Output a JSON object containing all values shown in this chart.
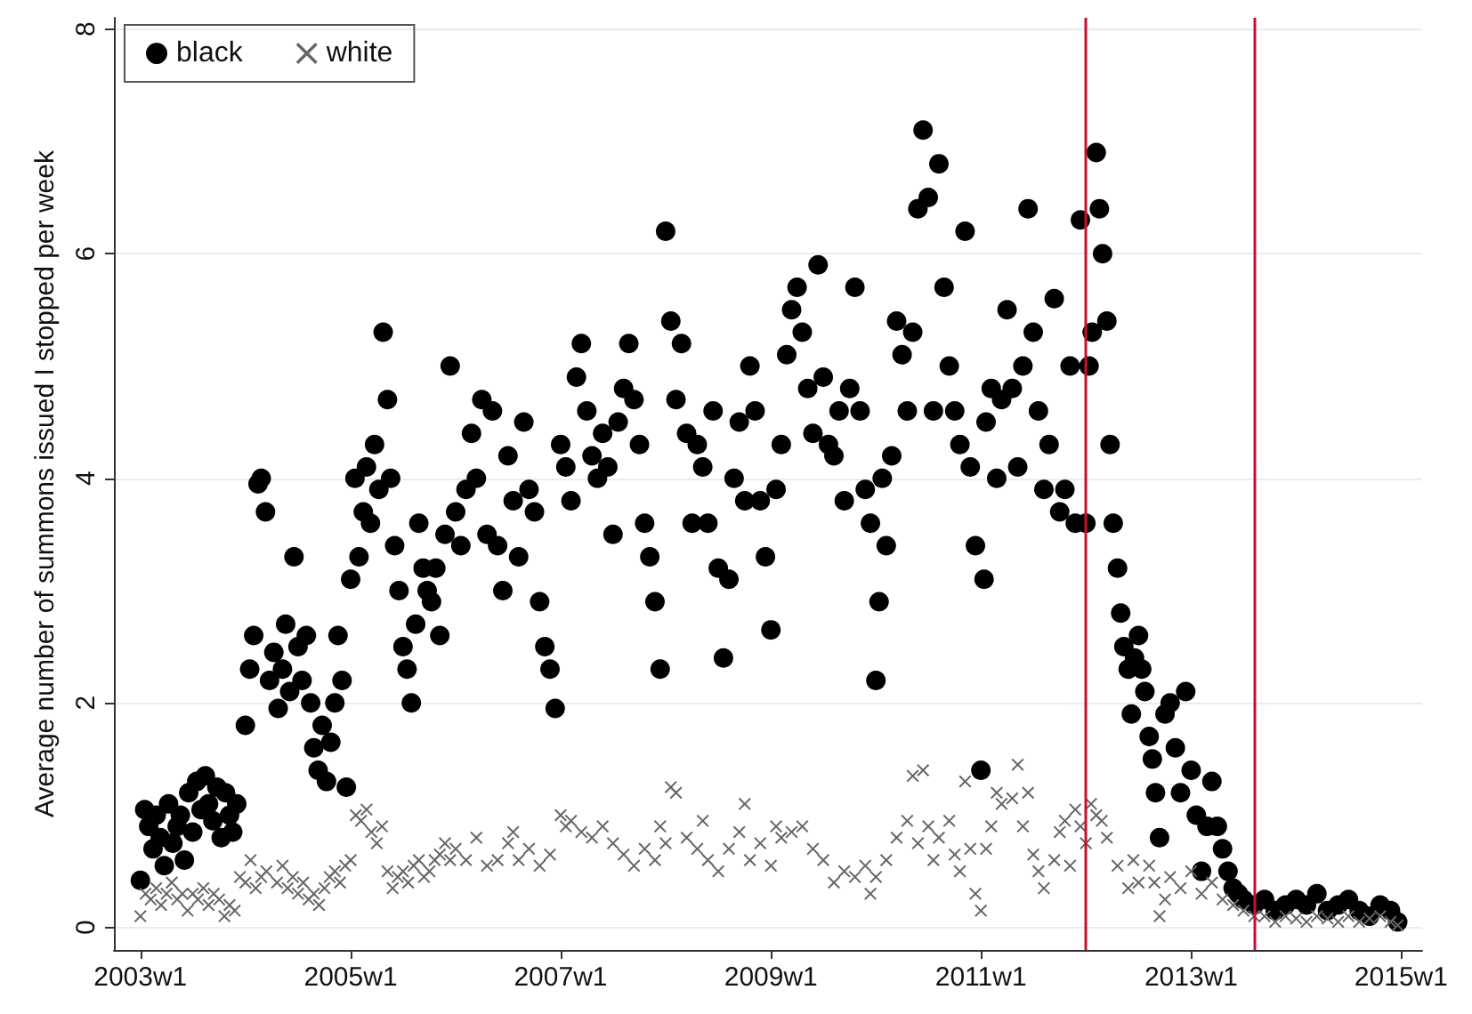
{
  "chart_data": {
    "type": "scatter",
    "ylabel": "Average number of summons issued I stopped per week",
    "xlim": [
      "2002-10-01",
      "2015-03-15"
    ],
    "xticks": [
      {
        "value": "2003-01-01",
        "label": "2003w1"
      },
      {
        "value": "2005-01-01",
        "label": "2005w1"
      },
      {
        "value": "2007-01-01",
        "label": "2007w1"
      },
      {
        "value": "2009-01-01",
        "label": "2009w1"
      },
      {
        "value": "2011-01-01",
        "label": "2011w1"
      },
      {
        "value": "2013-01-01",
        "label": "2013w1"
      },
      {
        "value": "2015-01-01",
        "label": "2015w1"
      }
    ],
    "ylim": [
      -0.2,
      8.1
    ],
    "yticks": [
      0,
      2,
      4,
      6,
      8
    ],
    "grid": "y",
    "legend": "top left",
    "ref_lines": [
      {
        "axis": "x",
        "value": "2012-01-01",
        "label": null,
        "color": "#c8102e"
      },
      {
        "axis": "x",
        "value": "2013-08-08",
        "label": null,
        "color": "#c8102e"
      }
    ],
    "series": [
      {
        "name": "black",
        "color": "#000000",
        "marker": "circle",
        "x": [
          "2003-01-01",
          "2003-01-16",
          "2003-01-30",
          "2003-02-14",
          "2003-02-25",
          "2003-03-11",
          "2003-03-25",
          "2003-04-09",
          "2003-04-24",
          "2003-05-09",
          "2003-05-20",
          "2003-06-03",
          "2003-06-18",
          "2003-07-02",
          "2003-07-16",
          "2003-07-31",
          "2003-08-15",
          "2003-08-26",
          "2003-09-10",
          "2003-09-24",
          "2003-10-09",
          "2003-10-24",
          "2003-11-07",
          "2003-11-18",
          "2003-12-02",
          "2004-01-01",
          "2004-01-16",
          "2004-01-30",
          "2004-02-14",
          "2004-02-25",
          "2004-03-11",
          "2004-03-25",
          "2004-04-09",
          "2004-04-24",
          "2004-05-09",
          "2004-05-20",
          "2004-06-03",
          "2004-06-18",
          "2004-07-02",
          "2004-07-16",
          "2004-07-31",
          "2004-08-15",
          "2004-08-26",
          "2004-09-10",
          "2004-09-24",
          "2004-10-09",
          "2004-10-24",
          "2004-11-07",
          "2004-11-18",
          "2004-12-02",
          "2004-12-17",
          "2005-01-01",
          "2005-01-16",
          "2005-01-30",
          "2005-02-14",
          "2005-02-25",
          "2005-03-11",
          "2005-03-25",
          "2005-04-09",
          "2005-04-24",
          "2005-05-09",
          "2005-05-20",
          "2005-06-03",
          "2005-06-18",
          "2005-07-02",
          "2005-07-16",
          "2005-07-31",
          "2005-08-15",
          "2005-08-26",
          "2005-09-10",
          "2005-09-24",
          "2005-10-09",
          "2005-10-24",
          "2005-11-07",
          "2005-11-25",
          "2005-12-13",
          "2006-01-01",
          "2006-01-19",
          "2006-02-06",
          "2006-02-25",
          "2006-03-14",
          "2006-04-02",
          "2006-04-20",
          "2006-05-09",
          "2006-05-27",
          "2006-06-14",
          "2006-07-02",
          "2006-07-20",
          "2006-08-08",
          "2006-08-26",
          "2006-09-13",
          "2006-10-02",
          "2006-10-20",
          "2006-11-07",
          "2006-11-25",
          "2006-12-13",
          "2007-01-01",
          "2007-01-19",
          "2007-02-06",
          "2007-02-25",
          "2007-03-14",
          "2007-04-02",
          "2007-04-20",
          "2007-05-09",
          "2007-05-27",
          "2007-06-14",
          "2007-07-02",
          "2007-07-20",
          "2007-08-08",
          "2007-08-26",
          "2007-09-13",
          "2007-10-02",
          "2007-10-20",
          "2007-11-07",
          "2007-11-25",
          "2007-12-13",
          "2008-01-01",
          "2008-01-19",
          "2008-02-06",
          "2008-02-25",
          "2008-03-14",
          "2008-04-02",
          "2008-04-20",
          "2008-05-09",
          "2008-05-27",
          "2008-06-14",
          "2008-07-02",
          "2008-07-20",
          "2008-08-08",
          "2008-08-26",
          "2008-09-13",
          "2008-10-02",
          "2008-10-20",
          "2008-11-07",
          "2008-11-25",
          "2008-12-13",
          "2009-01-01",
          "2009-01-19",
          "2009-02-06",
          "2009-02-25",
          "2009-03-14",
          "2009-04-02",
          "2009-04-20",
          "2009-05-09",
          "2009-05-27",
          "2009-06-14",
          "2009-07-02",
          "2009-07-20",
          "2009-08-08",
          "2009-08-26",
          "2009-09-13",
          "2009-10-02",
          "2009-10-20",
          "2009-11-07",
          "2009-11-25",
          "2009-12-13",
          "2010-01-01",
          "2010-01-12",
          "2010-01-23",
          "2010-02-06",
          "2010-02-25",
          "2010-03-14",
          "2010-04-02",
          "2010-04-20",
          "2010-05-09",
          "2010-05-27",
          "2010-06-14",
          "2010-07-02",
          "2010-07-20",
          "2010-08-08",
          "2010-08-26",
          "2010-09-13",
          "2010-10-02",
          "2010-10-20",
          "2010-11-07",
          "2010-11-25",
          "2010-12-13",
          "2011-01-01",
          "2011-01-12",
          "2011-01-19",
          "2011-02-06",
          "2011-02-25",
          "2011-03-14",
          "2011-04-02",
          "2011-04-20",
          "2011-05-09",
          "2011-05-27",
          "2011-06-14",
          "2011-07-02",
          "2011-07-20",
          "2011-08-08",
          "2011-08-26",
          "2011-09-13",
          "2011-10-02",
          "2011-10-20",
          "2011-11-07",
          "2011-11-25",
          "2011-12-13",
          "2012-01-01",
          "2012-01-12",
          "2012-01-23",
          "2012-02-06",
          "2012-02-17",
          "2012-02-28",
          "2012-03-14",
          "2012-03-25",
          "2012-04-05",
          "2012-04-20",
          "2012-05-01",
          "2012-05-12",
          "2012-05-27",
          "2012-06-07",
          "2012-06-18",
          "2012-07-02",
          "2012-07-13",
          "2012-07-24",
          "2012-08-08",
          "2012-08-19",
          "2012-08-30",
          "2012-09-13",
          "2012-10-02",
          "2012-10-20",
          "2012-11-07",
          "2012-11-25",
          "2012-12-13",
          "2013-01-01",
          "2013-01-19",
          "2013-02-06",
          "2013-02-25",
          "2013-03-14",
          "2013-04-02",
          "2013-04-20",
          "2013-05-09",
          "2013-05-27",
          "2013-06-14",
          "2013-07-02",
          "2013-08-08",
          "2013-09-13",
          "2013-10-20",
          "2013-11-25",
          "2014-01-01",
          "2014-02-06",
          "2014-03-14",
          "2014-04-20",
          "2014-05-27",
          "2014-07-02",
          "2014-08-08",
          "2014-09-13",
          "2014-10-20",
          "2014-11-25",
          "2014-12-20"
        ],
        "values": [
          0.42,
          1.05,
          0.9,
          0.7,
          1.0,
          0.8,
          0.55,
          1.1,
          0.75,
          0.9,
          1.0,
          0.6,
          1.2,
          0.85,
          1.3,
          1.05,
          1.35,
          1.1,
          0.95,
          1.25,
          0.8,
          1.2,
          1.0,
          0.85,
          1.1,
          1.8,
          2.3,
          2.6,
          3.95,
          4.0,
          3.7,
          2.2,
          2.45,
          1.95,
          2.3,
          2.7,
          2.1,
          3.3,
          2.5,
          2.2,
          2.6,
          2.0,
          1.6,
          1.4,
          1.8,
          1.3,
          1.65,
          2.0,
          2.6,
          2.2,
          1.25,
          3.1,
          4.0,
          3.3,
          3.7,
          4.1,
          3.6,
          4.3,
          3.9,
          5.3,
          4.7,
          4.0,
          3.4,
          3.0,
          2.5,
          2.3,
          2.0,
          2.7,
          3.6,
          3.2,
          3.0,
          2.9,
          3.2,
          2.6,
          3.5,
          5.0,
          3.7,
          3.4,
          3.9,
          4.4,
          4.0,
          4.7,
          3.5,
          4.6,
          3.4,
          3.0,
          4.2,
          3.8,
          3.3,
          4.5,
          3.9,
          3.7,
          2.9,
          2.5,
          2.3,
          1.95,
          4.3,
          4.1,
          3.8,
          4.9,
          5.2,
          4.6,
          4.2,
          4.0,
          4.4,
          4.1,
          3.5,
          4.5,
          4.8,
          5.2,
          4.7,
          4.3,
          3.6,
          3.3,
          2.9,
          2.3,
          6.2,
          5.4,
          4.7,
          5.2,
          4.4,
          3.6,
          4.3,
          4.1,
          3.6,
          4.6,
          3.2,
          2.4,
          3.1,
          4.0,
          4.5,
          3.8,
          5.0,
          4.6,
          3.8,
          3.3,
          2.65,
          3.9,
          4.3,
          5.1,
          5.5,
          5.7,
          5.3,
          4.8,
          4.4,
          5.9,
          4.9,
          4.3,
          4.2,
          4.6,
          3.8,
          4.8,
          5.7,
          4.6,
          3.9,
          3.6,
          2.2,
          2.9,
          4.0,
          3.4,
          4.2,
          5.4,
          5.1,
          4.6,
          5.3,
          6.4,
          7.1,
          6.5,
          4.6,
          6.8,
          5.7,
          5.0,
          4.6,
          4.3,
          6.2,
          4.1,
          3.4,
          1.4,
          3.1,
          4.5,
          4.8,
          4.0,
          4.7,
          5.5,
          4.8,
          4.1,
          5.0,
          6.4,
          5.3,
          4.6,
          3.9,
          4.3,
          5.6,
          3.7,
          3.9,
          5.0,
          3.6,
          6.3,
          3.6,
          5.0,
          5.3,
          6.9,
          6.4,
          6.0,
          5.4,
          4.3,
          3.6,
          3.2,
          2.8,
          2.5,
          2.3,
          1.9,
          2.4,
          2.6,
          2.3,
          2.1,
          1.7,
          1.5,
          1.2,
          0.8,
          1.9,
          2.0,
          1.6,
          1.2,
          2.1,
          1.4,
          1.0,
          0.5,
          0.9,
          1.3,
          0.9,
          0.7,
          0.5,
          0.35,
          0.3,
          0.25,
          0.2,
          0.25,
          0.15,
          0.2,
          0.25,
          0.2,
          0.3,
          0.15,
          0.2,
          0.25,
          0.15,
          0.1,
          0.2,
          0.15,
          0.05
        ]
      },
      {
        "name": "white",
        "color": "#666666",
        "marker": "cross",
        "x": [
          "2003-01-01",
          "2003-01-19",
          "2003-02-06",
          "2003-02-25",
          "2003-03-14",
          "2003-04-02",
          "2003-04-20",
          "2003-05-09",
          "2003-05-27",
          "2003-06-14",
          "2003-07-02",
          "2003-07-20",
          "2003-08-08",
          "2003-08-26",
          "2003-09-13",
          "2003-10-02",
          "2003-10-20",
          "2003-11-07",
          "2003-11-25",
          "2003-12-13",
          "2004-01-01",
          "2004-01-19",
          "2004-02-06",
          "2004-02-25",
          "2004-03-14",
          "2004-04-20",
          "2004-05-09",
          "2004-05-27",
          "2004-06-14",
          "2004-07-02",
          "2004-07-20",
          "2004-08-08",
          "2004-08-26",
          "2004-09-13",
          "2004-10-02",
          "2004-10-20",
          "2004-11-07",
          "2004-11-25",
          "2004-12-13",
          "2005-01-01",
          "2005-01-19",
          "2005-02-06",
          "2005-02-25",
          "2005-03-14",
          "2005-04-02",
          "2005-04-20",
          "2005-05-09",
          "2005-05-27",
          "2005-06-14",
          "2005-07-02",
          "2005-07-20",
          "2005-08-08",
          "2005-08-26",
          "2005-09-13",
          "2005-10-02",
          "2005-10-20",
          "2005-11-07",
          "2005-11-25",
          "2005-12-13",
          "2006-01-01",
          "2006-02-06",
          "2006-03-14",
          "2006-04-20",
          "2006-05-27",
          "2006-07-02",
          "2006-07-20",
          "2006-08-08",
          "2006-09-13",
          "2006-10-20",
          "2006-11-25",
          "2007-01-01",
          "2007-01-19",
          "2007-02-06",
          "2007-03-14",
          "2007-04-20",
          "2007-05-27",
          "2007-07-02",
          "2007-08-08",
          "2007-09-13",
          "2007-10-20",
          "2007-11-25",
          "2007-12-13",
          "2008-01-01",
          "2008-01-19",
          "2008-02-06",
          "2008-03-14",
          "2008-04-20",
          "2008-05-09",
          "2008-05-27",
          "2008-07-02",
          "2008-08-08",
          "2008-09-13",
          "2008-10-02",
          "2008-10-20",
          "2008-11-25",
          "2009-01-01",
          "2009-01-19",
          "2009-02-06",
          "2009-03-14",
          "2009-04-20",
          "2009-05-27",
          "2009-07-02",
          "2009-08-08",
          "2009-09-13",
          "2009-10-20",
          "2009-11-25",
          "2009-12-13",
          "2010-01-01",
          "2010-02-06",
          "2010-03-14",
          "2010-04-20",
          "2010-05-09",
          "2010-05-27",
          "2010-06-14",
          "2010-07-02",
          "2010-07-20",
          "2010-08-08",
          "2010-09-13",
          "2010-10-02",
          "2010-10-20",
          "2010-11-07",
          "2010-11-25",
          "2010-12-13",
          "2011-01-01",
          "2011-01-19",
          "2011-02-06",
          "2011-02-25",
          "2011-03-14",
          "2011-04-20",
          "2011-05-09",
          "2011-05-27",
          "2011-06-14",
          "2011-07-02",
          "2011-07-20",
          "2011-08-08",
          "2011-09-13",
          "2011-10-02",
          "2011-10-20",
          "2011-11-07",
          "2011-11-25",
          "2011-12-13",
          "2012-01-01",
          "2012-01-19",
          "2012-02-06",
          "2012-02-25",
          "2012-03-14",
          "2012-04-20",
          "2012-05-27",
          "2012-06-14",
          "2012-07-02",
          "2012-08-08",
          "2012-08-26",
          "2012-09-13",
          "2012-10-02",
          "2012-10-20",
          "2012-11-25",
          "2013-01-01",
          "2013-02-06",
          "2013-03-14",
          "2013-04-20",
          "2013-05-27",
          "2013-07-02",
          "2013-08-08",
          "2013-09-13",
          "2013-10-20",
          "2013-11-25",
          "2014-01-01",
          "2014-02-06",
          "2014-03-14",
          "2014-04-20",
          "2014-05-27",
          "2014-07-02",
          "2014-08-08",
          "2014-09-13",
          "2014-10-20",
          "2014-11-25",
          "2014-12-20"
        ],
        "values": [
          0.1,
          0.3,
          0.25,
          0.35,
          0.2,
          0.3,
          0.4,
          0.25,
          0.3,
          0.15,
          0.3,
          0.25,
          0.35,
          0.2,
          0.3,
          0.25,
          0.1,
          0.2,
          0.15,
          0.45,
          0.4,
          0.6,
          0.35,
          0.45,
          0.5,
          0.4,
          0.55,
          0.35,
          0.45,
          0.3,
          0.4,
          0.25,
          0.3,
          0.2,
          0.35,
          0.45,
          0.5,
          0.4,
          0.55,
          0.6,
          1.0,
          0.95,
          1.05,
          0.85,
          0.75,
          0.9,
          0.5,
          0.35,
          0.45,
          0.5,
          0.4,
          0.55,
          0.6,
          0.45,
          0.5,
          0.6,
          0.65,
          0.75,
          0.6,
          0.7,
          0.6,
          0.8,
          0.55,
          0.6,
          0.75,
          0.85,
          0.6,
          0.7,
          0.55,
          0.65,
          1.0,
          0.9,
          0.95,
          0.85,
          0.8,
          0.9,
          0.75,
          0.65,
          0.55,
          0.7,
          0.6,
          0.9,
          0.75,
          1.25,
          1.2,
          0.8,
          0.7,
          0.95,
          0.6,
          0.5,
          0.7,
          0.85,
          1.1,
          0.6,
          0.75,
          0.55,
          0.9,
          0.8,
          0.85,
          0.9,
          0.7,
          0.6,
          0.4,
          0.5,
          0.45,
          0.55,
          0.3,
          0.45,
          0.6,
          0.8,
          0.95,
          1.35,
          0.75,
          1.4,
          0.9,
          0.6,
          0.8,
          0.95,
          0.65,
          0.5,
          1.3,
          0.7,
          0.3,
          0.15,
          0.7,
          0.9,
          1.2,
          1.1,
          1.15,
          1.45,
          0.9,
          1.2,
          0.65,
          0.5,
          0.35,
          0.6,
          0.85,
          0.95,
          0.55,
          1.05,
          0.9,
          0.75,
          1.1,
          1.0,
          0.95,
          0.8,
          0.55,
          0.35,
          0.6,
          0.4,
          0.55,
          0.4,
          0.1,
          0.25,
          0.45,
          0.35,
          0.5,
          0.3,
          0.4,
          0.25,
          0.2,
          0.15,
          0.1,
          0.1,
          0.05,
          0.1,
          0.08,
          0.05,
          0.1,
          0.08,
          0.05,
          0.1,
          0.05,
          0.08,
          0.1,
          0.05,
          0.02
        ]
      }
    ]
  }
}
